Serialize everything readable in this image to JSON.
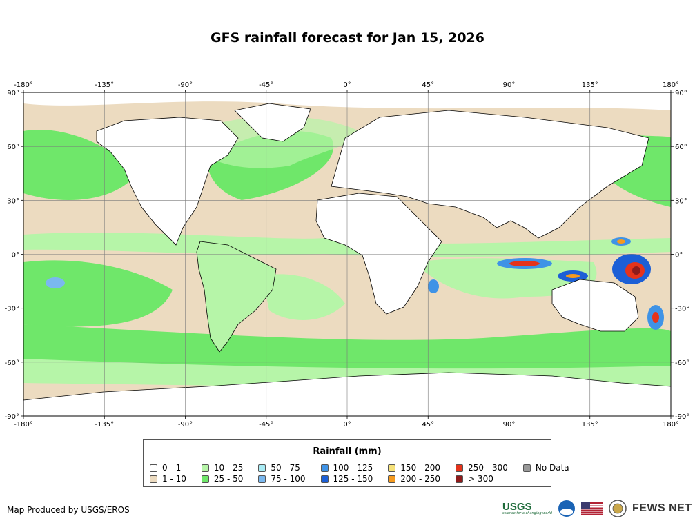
{
  "title": "GFS rainfall forecast for Jan 15, 2026",
  "axes": {
    "lon_ticks": [
      "-180°",
      "-135°",
      "-90°",
      "-45°",
      "0°",
      "45°",
      "90°",
      "135°",
      "180°"
    ],
    "lat_ticks": [
      "90°",
      "60°",
      "30°",
      "0°",
      "-30°",
      "-60°",
      "-90°"
    ]
  },
  "legend": {
    "title": "Rainfall (mm)",
    "items": [
      {
        "label": "0 - 1",
        "color": "#ffffff"
      },
      {
        "label": "1 - 10",
        "color": "#ecdbc0"
      },
      {
        "label": "10 - 25",
        "color": "#b6f5a8"
      },
      {
        "label": "25 - 50",
        "color": "#6fe76a"
      },
      {
        "label": "50 - 75",
        "color": "#a9ecf5"
      },
      {
        "label": "75 - 100",
        "color": "#7ab8ef"
      },
      {
        "label": "100 - 125",
        "color": "#3f93e6"
      },
      {
        "label": "125 - 150",
        "color": "#1c5fd6"
      },
      {
        "label": "150 - 200",
        "color": "#f6e27a"
      },
      {
        "label": "200 - 250",
        "color": "#f59a1e"
      },
      {
        "label": "250 - 300",
        "color": "#e5331b"
      },
      {
        "label": "> 300",
        "color": "#8e1b1b"
      },
      {
        "label": "No Data",
        "color": "#999999"
      }
    ]
  },
  "credit": "Map Produced by USGS/EROS",
  "logos": {
    "usgs": "USGS",
    "usgs_tagline": "science for a changing world",
    "fews": "FEWS NET"
  }
}
